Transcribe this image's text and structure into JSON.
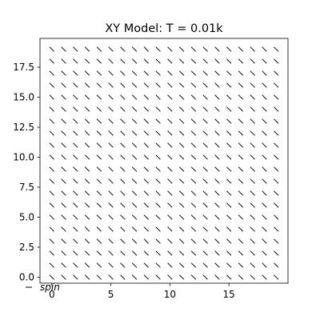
{
  "chart_data": {
    "type": "quiver",
    "title": "XY Model: T = 0.01k",
    "xlabel": "",
    "ylabel": "",
    "xlim": [
      -1.0,
      20.0
    ],
    "ylim": [
      -0.5,
      19.9
    ],
    "x_ticks": [
      0,
      5,
      10,
      15
    ],
    "x_tick_labels": [
      "0",
      "5",
      "10",
      "15"
    ],
    "y_ticks": [
      0.0,
      2.5,
      5.0,
      7.5,
      10.0,
      12.5,
      15.0,
      17.5
    ],
    "y_tick_labels": [
      "0.0",
      "2.5",
      "5.0",
      "7.5",
      "10.0",
      "12.5",
      "15.0",
      "17.5"
    ],
    "grid": false,
    "lattice": {
      "nx": 20,
      "ny": 20,
      "x_start": 0,
      "y_start": 0,
      "step": 1
    },
    "spin_angle_deg": 135,
    "quiver_key": {
      "label": "spin",
      "placement": "bottom-left"
    },
    "colors": {
      "arrow": "#000000",
      "axes": "#000000",
      "background": "#ffffff"
    }
  }
}
